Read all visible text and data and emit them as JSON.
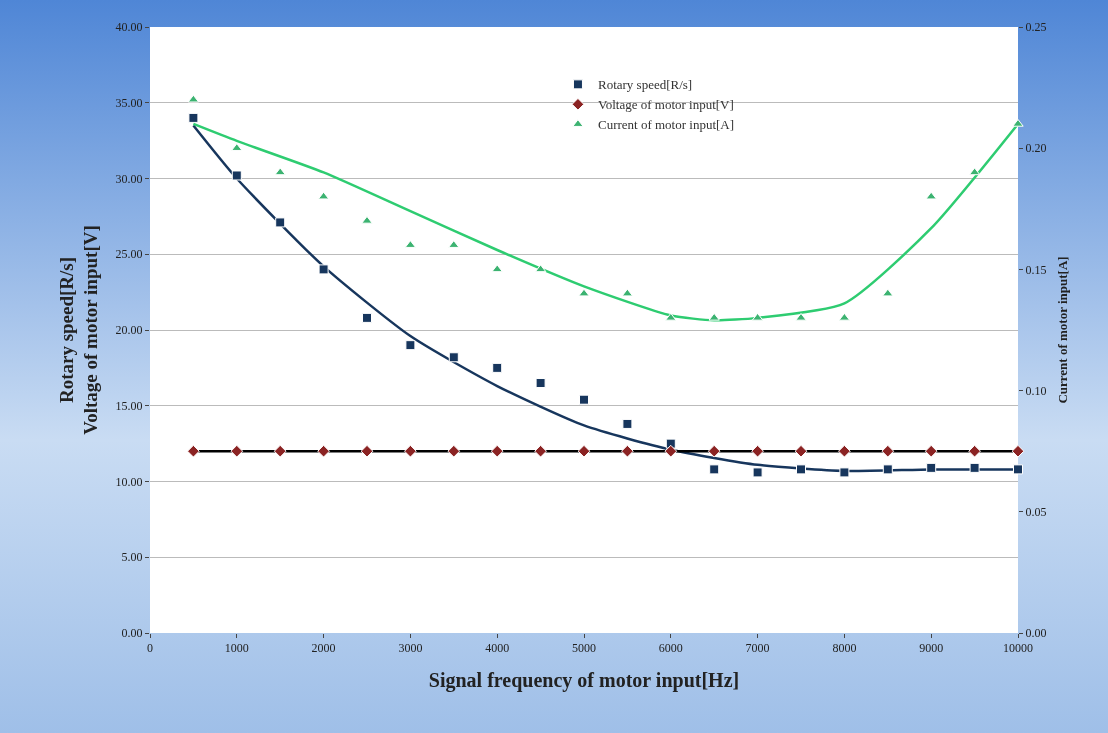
{
  "chart_data": {
    "type": "scatter",
    "xlabel": "Signal frequency of motor input[Hz]",
    "ylabel": "Rotary speed[R/s]\nVoltage of motor input[V]",
    "y2label": "Current of motor input[A]",
    "x": [
      500,
      1000,
      1500,
      2000,
      2500,
      3000,
      3500,
      4000,
      4500,
      5000,
      5500,
      6000,
      6500,
      7000,
      7500,
      8000,
      8500,
      9000,
      9500,
      10000
    ],
    "series": [
      {
        "type": "line",
        "color": "#17365d",
        "x": [
          500,
          1000,
          2000,
          3000,
          4000,
          5000,
          6000,
          7000,
          8000,
          9000,
          10000
        ],
        "values": [
          33.5,
          30.0,
          24.2,
          19.6,
          16.3,
          13.7,
          12.1,
          11.1,
          10.7,
          10.8,
          10.8
        ]
      },
      {
        "type": "line",
        "color": "#000000",
        "x": [
          500,
          10000
        ],
        "values": [
          12,
          12
        ]
      },
      {
        "type": "line",
        "color": "#2ecc71",
        "axis": "y2",
        "x": [
          500,
          1000,
          2000,
          3000,
          4000,
          5000,
          6000,
          6500,
          7000,
          8000,
          9000,
          10000
        ],
        "values": [
          0.21,
          0.203,
          0.19,
          0.174,
          0.158,
          0.143,
          0.131,
          0.129,
          0.13,
          0.136,
          0.167,
          0.21
        ]
      },
      {
        "name": "Rotary speed[R/s]",
        "color": "#17365d",
        "marker": "square",
        "values": [
          34.0,
          30.2,
          27.1,
          24.0,
          20.8,
          19.0,
          18.2,
          17.5,
          16.5,
          15.4,
          13.8,
          12.5,
          10.8,
          10.6,
          10.8,
          10.6,
          10.8,
          10.9,
          10.9,
          10.8
        ]
      },
      {
        "name": "Voltage of motor input[V]",
        "color": "#8b2323",
        "marker": "diamond",
        "values": [
          12,
          12,
          12,
          12,
          12,
          12,
          12,
          12,
          12,
          12,
          12,
          12,
          12,
          12,
          12,
          12,
          12,
          12,
          12,
          12
        ]
      },
      {
        "name": "Current of motor input[A]",
        "color": "#3cb371",
        "marker": "triangle",
        "axis": "y2",
        "values": [
          0.22,
          0.2,
          0.19,
          0.18,
          0.17,
          0.16,
          0.16,
          0.15,
          0.15,
          0.14,
          0.14,
          0.13,
          0.13,
          0.13,
          0.13,
          0.13,
          0.14,
          0.18,
          0.19,
          0.21
        ]
      }
    ],
    "xlim": [
      0,
      10000
    ],
    "xticks": [
      0,
      1000,
      2000,
      3000,
      4000,
      5000,
      6000,
      7000,
      8000,
      9000,
      10000
    ],
    "ylim": [
      0,
      40
    ],
    "yticks": [
      {
        "value": 0,
        "label": "0.00"
      },
      {
        "value": 5,
        "label": "5.00"
      },
      {
        "value": 10,
        "label": "10.00"
      },
      {
        "value": 15,
        "label": "15.00"
      },
      {
        "value": 20,
        "label": "20.00"
      },
      {
        "value": 25,
        "label": "25.00"
      },
      {
        "value": 30,
        "label": "30.00"
      },
      {
        "value": 35,
        "label": "35.00"
      },
      {
        "value": 40,
        "label": "40.00"
      }
    ],
    "y2lim": [
      0,
      0.25
    ],
    "y2ticks": [
      {
        "value": 0,
        "label": "0.00"
      },
      {
        "value": 0.05,
        "label": "0.05"
      },
      {
        "value": 0.1,
        "label": "0.10"
      },
      {
        "value": 0.15,
        "label": "0.15"
      },
      {
        "value": 0.2,
        "label": "0.20"
      },
      {
        "value": 0.25,
        "label": "0.25"
      }
    ],
    "grid": "y",
    "legend": "top right",
    "line_style": "solid"
  }
}
